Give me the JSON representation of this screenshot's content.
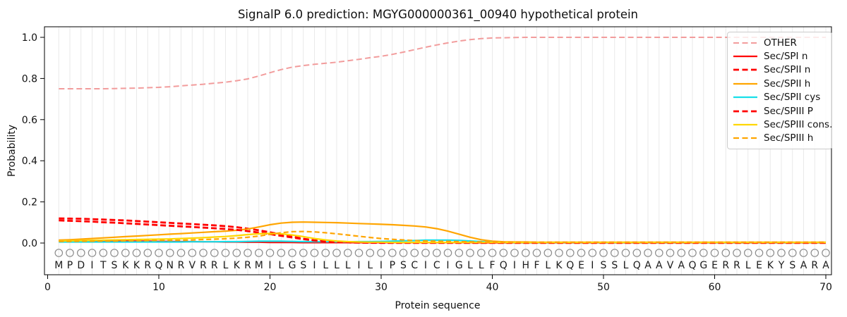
{
  "chart_data": {
    "type": "line",
    "title": "SignalP 6.0 prediction: MGYG000000361_00940 hypothetical protein",
    "xlabel": "Protein sequence",
    "ylabel": "Probability",
    "xticks": [
      0,
      10,
      20,
      30,
      40,
      50,
      60,
      70
    ],
    "yticks": [
      0.0,
      0.2,
      0.4,
      0.6,
      0.8,
      1.0
    ],
    "xlim": [
      -0.25,
      70.5
    ],
    "ylim": [
      -0.155,
      1.05
    ],
    "grid": "vertical-per-residue",
    "legend_position": "upper right",
    "sequence": "MPDITSKKRQNRVRRLKRMILGSILLLILIPSCICIGLLFQIHFLKQEISSLQAAVAQGERRLEKYSARA",
    "marker_row": {
      "symbol": "open-circle",
      "y": -0.048
    },
    "colors": {
      "grid": "#e9e9e9",
      "axis": "#000000",
      "marker": "#8c8c8c",
      "letter": "#1a1a1a"
    },
    "series": [
      {
        "name": "OTHER",
        "color": "#f29c9c",
        "dash": [
          8,
          4.5
        ],
        "width": 2,
        "values": [
          0.75,
          0.75,
          0.75,
          0.75,
          0.75,
          0.751,
          0.752,
          0.753,
          0.755,
          0.757,
          0.76,
          0.764,
          0.768,
          0.772,
          0.777,
          0.782,
          0.789,
          0.798,
          0.812,
          0.828,
          0.843,
          0.855,
          0.863,
          0.869,
          0.874,
          0.879,
          0.886,
          0.893,
          0.901,
          0.908,
          0.917,
          0.928,
          0.94,
          0.952,
          0.963,
          0.973,
          0.982,
          0.989,
          0.994,
          0.997,
          0.998,
          0.999,
          1.0,
          1.0,
          1.0,
          1.0,
          1.0,
          1.0,
          1.0,
          1.0,
          1.0,
          1.0,
          1.0,
          1.0,
          1.0,
          1.0,
          1.0,
          1.0,
          1.0,
          1.0,
          1.0,
          1.0,
          1.0,
          1.0,
          1.0,
          1.0,
          1.0,
          1.0,
          1.0,
          1.0
        ]
      },
      {
        "name": "Sec/SPI n",
        "color": "#ff0000",
        "dash": null,
        "width": 2.2,
        "values": [
          0.013,
          0.012,
          0.012,
          0.011,
          0.011,
          0.01,
          0.01,
          0.009,
          0.009,
          0.008,
          0.008,
          0.007,
          0.007,
          0.006,
          0.006,
          0.005,
          0.005,
          0.004,
          0.004,
          0.003,
          0.003,
          0.003,
          0.002,
          0.002,
          0.002,
          0.002,
          0.002,
          0.002,
          0.002,
          0.002,
          0.002,
          0.002,
          0.002,
          0.002,
          0.002,
          0.002,
          0.002,
          0.002,
          0.001,
          0.001,
          0.001,
          0.001,
          0.001,
          0.001,
          0.001,
          0.001,
          0.001,
          0.001,
          0.001,
          0.001,
          0.001,
          0.001,
          0.001,
          0.001,
          0.001,
          0.001,
          0.001,
          0.001,
          0.001,
          0.001,
          0.001,
          0.001,
          0.001,
          0.001,
          0.001,
          0.001,
          0.001,
          0.001,
          0.001,
          0.001
        ]
      },
      {
        "name": "Sec/SPII n",
        "color": "#ff0000",
        "dash": [
          8,
          4
        ],
        "width": 2.8,
        "values": [
          0.12,
          0.119,
          0.118,
          0.116,
          0.114,
          0.112,
          0.11,
          0.107,
          0.104,
          0.101,
          0.098,
          0.095,
          0.092,
          0.089,
          0.086,
          0.082,
          0.077,
          0.07,
          0.062,
          0.052,
          0.042,
          0.031,
          0.021,
          0.013,
          0.007,
          0.004,
          0.003,
          0.002,
          0.002,
          0.001,
          0.001,
          0.001,
          0.001,
          0.001,
          0.001,
          0.001,
          0.001,
          0.001,
          0.001,
          0.001,
          0.001,
          0.001,
          0.001,
          0.001,
          0.001,
          0.001,
          0.001,
          0.001,
          0.001,
          0.001,
          0.001,
          0.001,
          0.001,
          0.001,
          0.001,
          0.001,
          0.001,
          0.001,
          0.001,
          0.001,
          0.001,
          0.001,
          0.001,
          0.001,
          0.001,
          0.001,
          0.001,
          0.001,
          0.001,
          0.001
        ]
      },
      {
        "name": "Sec/SPII h",
        "color": "#ffa500",
        "dash": null,
        "width": 2.2,
        "values": [
          0.014,
          0.016,
          0.019,
          0.022,
          0.025,
          0.028,
          0.031,
          0.034,
          0.037,
          0.04,
          0.043,
          0.046,
          0.049,
          0.052,
          0.055,
          0.058,
          0.062,
          0.068,
          0.078,
          0.089,
          0.097,
          0.101,
          0.102,
          0.101,
          0.1,
          0.099,
          0.097,
          0.095,
          0.093,
          0.091,
          0.089,
          0.086,
          0.083,
          0.078,
          0.07,
          0.058,
          0.043,
          0.028,
          0.016,
          0.009,
          0.006,
          0.005,
          0.005,
          0.004,
          0.004,
          0.004,
          0.004,
          0.004,
          0.004,
          0.004,
          0.004,
          0.004,
          0.004,
          0.004,
          0.004,
          0.004,
          0.004,
          0.004,
          0.004,
          0.004,
          0.004,
          0.004,
          0.004,
          0.004,
          0.004,
          0.004,
          0.004,
          0.004,
          0.004,
          0.004
        ]
      },
      {
        "name": "Sec/SPII cys",
        "color": "#17dfe9",
        "dash": null,
        "width": 2.2,
        "values": [
          0.005,
          0.005,
          0.005,
          0.005,
          0.005,
          0.005,
          0.005,
          0.005,
          0.005,
          0.005,
          0.005,
          0.005,
          0.006,
          0.006,
          0.006,
          0.007,
          0.007,
          0.008,
          0.009,
          0.009,
          0.009,
          0.008,
          0.007,
          0.007,
          0.006,
          0.006,
          0.006,
          0.007,
          0.007,
          0.008,
          0.009,
          0.011,
          0.012,
          0.014,
          0.014,
          0.014,
          0.013,
          0.01,
          0.007,
          0.004,
          0.003,
          0.002,
          0.002,
          0.002,
          0.002,
          0.002,
          0.002,
          0.002,
          0.002,
          0.002,
          0.002,
          0.002,
          0.002,
          0.002,
          0.002,
          0.002,
          0.002,
          0.002,
          0.002,
          0.002,
          0.002,
          0.002,
          0.002,
          0.002,
          0.002,
          0.002,
          0.002,
          0.002,
          0.002,
          0.002
        ]
      },
      {
        "name": "Sec/SPIII P",
        "color": "#ff0000",
        "dash": [
          8,
          4
        ],
        "width": 2.8,
        "values": [
          0.11,
          0.108,
          0.106,
          0.104,
          0.101,
          0.099,
          0.096,
          0.093,
          0.09,
          0.087,
          0.084,
          0.081,
          0.078,
          0.075,
          0.072,
          0.068,
          0.064,
          0.058,
          0.051,
          0.043,
          0.035,
          0.027,
          0.019,
          0.012,
          0.007,
          0.004,
          0.003,
          0.002,
          0.001,
          0.001,
          0.001,
          0.001,
          0.001,
          0.001,
          0.001,
          0.001,
          0.001,
          0.001,
          0.001,
          0.001,
          0.001,
          0.001,
          0.001,
          0.001,
          0.001,
          0.001,
          0.001,
          0.001,
          0.001,
          0.001,
          0.001,
          0.001,
          0.001,
          0.001,
          0.001,
          0.001,
          0.001,
          0.001,
          0.001,
          0.001,
          0.001,
          0.001,
          0.001,
          0.001,
          0.001,
          0.001,
          0.001,
          0.001,
          0.001,
          0.001
        ]
      },
      {
        "name": "Sec/SPIII cons.",
        "color": "#ffd700",
        "dash": null,
        "width": 2.2,
        "values": [
          0.01,
          0.011,
          0.012,
          0.013,
          0.014,
          0.015,
          0.016,
          0.017,
          0.018,
          0.019,
          0.02,
          0.022,
          0.024,
          0.026,
          0.029,
          0.032,
          0.036,
          0.041,
          0.045,
          0.047,
          0.045,
          0.039,
          0.031,
          0.022,
          0.015,
          0.01,
          0.007,
          0.005,
          0.004,
          0.004,
          0.003,
          0.003,
          0.003,
          0.003,
          0.003,
          0.003,
          0.003,
          0.003,
          0.003,
          0.003,
          0.003,
          0.003,
          0.003,
          0.003,
          0.003,
          0.003,
          0.003,
          0.003,
          0.003,
          0.003,
          0.003,
          0.003,
          0.003,
          0.003,
          0.003,
          0.003,
          0.003,
          0.003,
          0.003,
          0.003,
          0.003,
          0.003,
          0.003,
          0.003,
          0.003,
          0.003,
          0.003,
          0.003,
          0.003,
          0.003
        ]
      },
      {
        "name": "Sec/SPIII h",
        "color": "#ffa500",
        "dash": [
          7,
          4
        ],
        "width": 2.2,
        "values": [
          0.008,
          0.008,
          0.009,
          0.009,
          0.01,
          0.01,
          0.011,
          0.011,
          0.012,
          0.013,
          0.013,
          0.014,
          0.015,
          0.017,
          0.019,
          0.021,
          0.024,
          0.028,
          0.034,
          0.042,
          0.05,
          0.055,
          0.056,
          0.054,
          0.05,
          0.045,
          0.039,
          0.033,
          0.027,
          0.022,
          0.018,
          0.015,
          0.012,
          0.01,
          0.009,
          0.008,
          0.007,
          0.006,
          0.005,
          0.005,
          0.004,
          0.004,
          0.004,
          0.004,
          0.004,
          0.004,
          0.004,
          0.004,
          0.004,
          0.004,
          0.004,
          0.004,
          0.004,
          0.004,
          0.004,
          0.004,
          0.004,
          0.004,
          0.004,
          0.004,
          0.004,
          0.004,
          0.004,
          0.004,
          0.004,
          0.004,
          0.004,
          0.004,
          0.004,
          0.004
        ]
      }
    ]
  }
}
